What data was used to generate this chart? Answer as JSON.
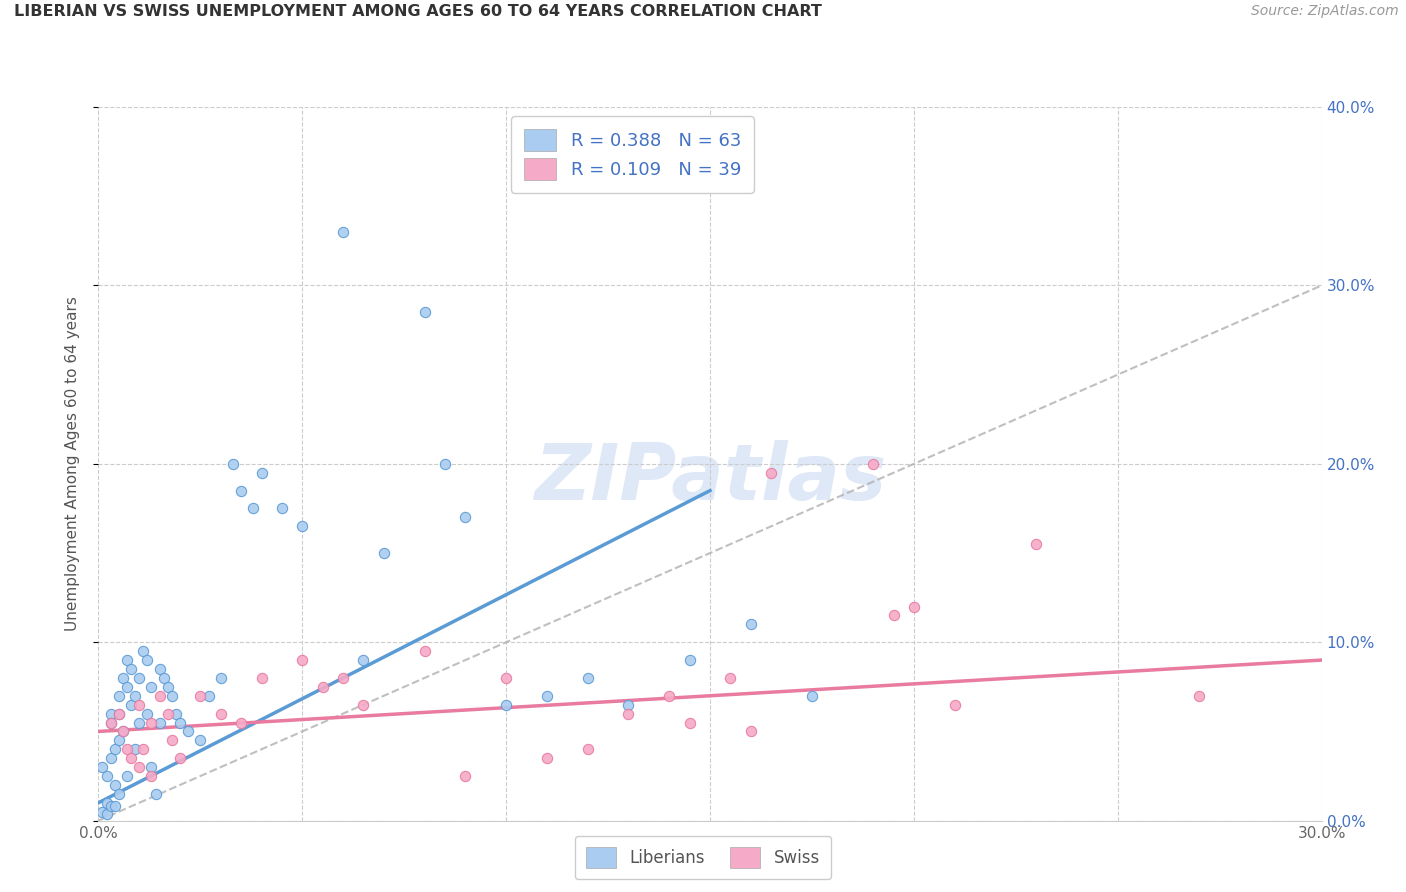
{
  "title": "LIBERIAN VS SWISS UNEMPLOYMENT AMONG AGES 60 TO 64 YEARS CORRELATION CHART",
  "source": "Source: ZipAtlas.com",
  "ylabel": "Unemployment Among Ages 60 to 64 years",
  "xlim": [
    0.0,
    0.3
  ],
  "ylim": [
    0.0,
    0.4
  ],
  "xticks": [
    0.0,
    0.05,
    0.1,
    0.15,
    0.2,
    0.25,
    0.3
  ],
  "yticks": [
    0.0,
    0.1,
    0.2,
    0.3,
    0.4
  ],
  "legend_r1": "R = 0.388",
  "legend_n1": "N = 63",
  "legend_r2": "R = 0.109",
  "legend_n2": "N = 39",
  "color_liberian": "#aaccf0",
  "color_swiss": "#f5aac8",
  "color_line_liberian": "#5b9bd5",
  "color_line_swiss": "#e87b9e",
  "color_dashed": "#b0b0b0",
  "watermark": "ZIPatlas",
  "liberian_x": [
    0.001,
    0.001,
    0.002,
    0.002,
    0.002,
    0.003,
    0.003,
    0.003,
    0.003,
    0.004,
    0.004,
    0.004,
    0.005,
    0.005,
    0.005,
    0.005,
    0.006,
    0.006,
    0.007,
    0.007,
    0.007,
    0.008,
    0.008,
    0.009,
    0.009,
    0.01,
    0.01,
    0.011,
    0.012,
    0.012,
    0.013,
    0.013,
    0.014,
    0.015,
    0.015,
    0.016,
    0.017,
    0.018,
    0.019,
    0.02,
    0.022,
    0.025,
    0.027,
    0.03,
    0.033,
    0.035,
    0.038,
    0.04,
    0.045,
    0.05,
    0.06,
    0.065,
    0.07,
    0.08,
    0.085,
    0.09,
    0.1,
    0.11,
    0.12,
    0.13,
    0.145,
    0.16,
    0.175
  ],
  "liberian_y": [
    0.03,
    0.005,
    0.025,
    0.01,
    0.004,
    0.035,
    0.06,
    0.055,
    0.008,
    0.04,
    0.02,
    0.008,
    0.07,
    0.06,
    0.045,
    0.015,
    0.08,
    0.05,
    0.09,
    0.075,
    0.025,
    0.085,
    0.065,
    0.07,
    0.04,
    0.08,
    0.055,
    0.095,
    0.09,
    0.06,
    0.075,
    0.03,
    0.015,
    0.085,
    0.055,
    0.08,
    0.075,
    0.07,
    0.06,
    0.055,
    0.05,
    0.045,
    0.07,
    0.08,
    0.2,
    0.185,
    0.175,
    0.195,
    0.175,
    0.165,
    0.33,
    0.09,
    0.15,
    0.285,
    0.2,
    0.17,
    0.065,
    0.07,
    0.08,
    0.065,
    0.09,
    0.11,
    0.07
  ],
  "swiss_x": [
    0.003,
    0.005,
    0.006,
    0.007,
    0.008,
    0.01,
    0.01,
    0.011,
    0.013,
    0.013,
    0.015,
    0.017,
    0.018,
    0.02,
    0.025,
    0.03,
    0.035,
    0.04,
    0.05,
    0.055,
    0.06,
    0.065,
    0.08,
    0.09,
    0.1,
    0.11,
    0.12,
    0.13,
    0.14,
    0.145,
    0.155,
    0.16,
    0.165,
    0.19,
    0.195,
    0.2,
    0.21,
    0.23,
    0.27
  ],
  "swiss_y": [
    0.055,
    0.06,
    0.05,
    0.04,
    0.035,
    0.065,
    0.03,
    0.04,
    0.055,
    0.025,
    0.07,
    0.06,
    0.045,
    0.035,
    0.07,
    0.06,
    0.055,
    0.08,
    0.09,
    0.075,
    0.08,
    0.065,
    0.095,
    0.025,
    0.08,
    0.035,
    0.04,
    0.06,
    0.07,
    0.055,
    0.08,
    0.05,
    0.195,
    0.2,
    0.115,
    0.12,
    0.065,
    0.155,
    0.07
  ],
  "lib_trend": [
    0.0,
    0.15
  ],
  "lib_trend_y": [
    0.01,
    0.185
  ],
  "swiss_trend": [
    0.0,
    0.3
  ],
  "swiss_trend_y": [
    0.05,
    0.09
  ]
}
